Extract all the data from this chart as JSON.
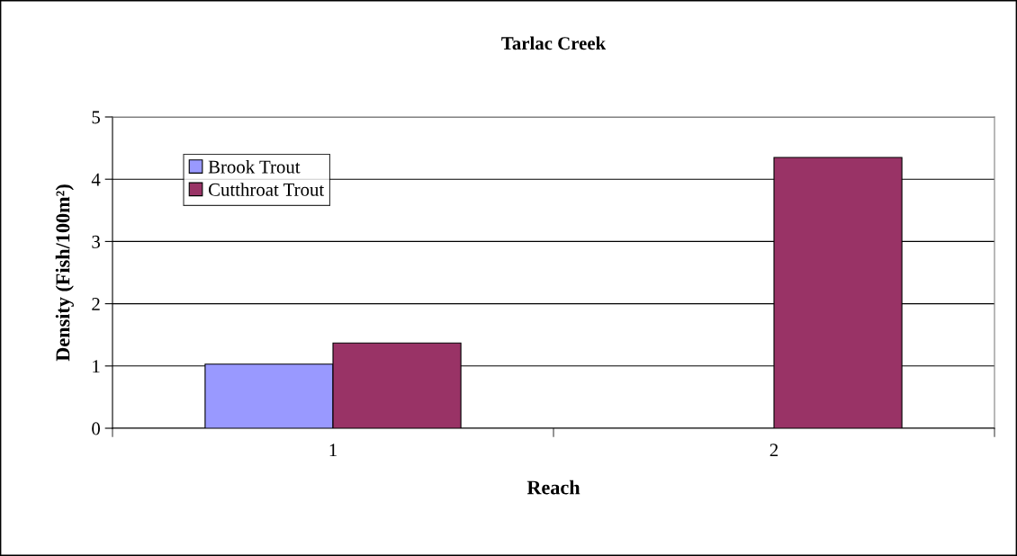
{
  "chart_data": {
    "type": "bar",
    "title": "Tarlac Creek",
    "xlabel": "Reach",
    "ylabel": "Density (Fish/100m²)",
    "categories": [
      "1",
      "2"
    ],
    "series": [
      {
        "name": "Brook Trout",
        "color": "#9999ff",
        "values": [
          1.03,
          null
        ]
      },
      {
        "name": "Cutthroat Trout",
        "color": "#993366",
        "values": [
          1.37,
          4.35
        ]
      }
    ],
    "ylim": [
      0,
      5
    ],
    "yticks": [
      0,
      1,
      2,
      3,
      4,
      5
    ],
    "grid": "y",
    "legend": "top left"
  }
}
